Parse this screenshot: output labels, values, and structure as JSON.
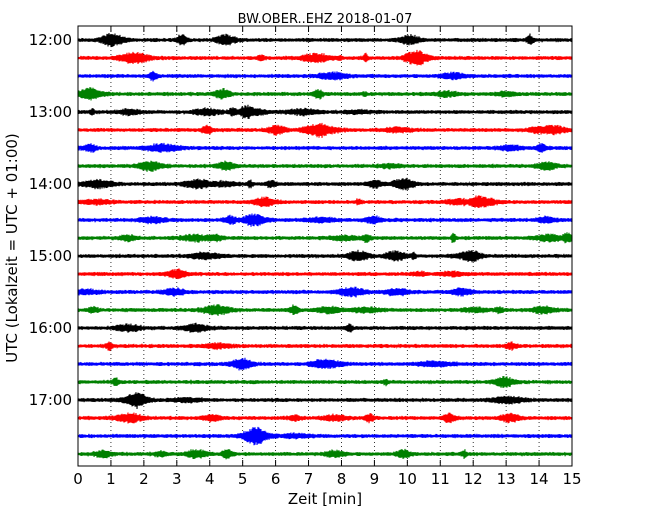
{
  "chart_data": {
    "type": "line",
    "title": "BW.OBER..EHZ 2018-01-07",
    "xlabel": "Zeit  [min]",
    "ylabel": "UTC (Lokalzeit = UTC + 01:00)",
    "xlim": [
      0,
      15
    ],
    "x_ticks": [
      0,
      1,
      2,
      3,
      4,
      5,
      6,
      7,
      8,
      9,
      10,
      11,
      12,
      13,
      14,
      15
    ],
    "x_tick_labels": [
      "0",
      "1",
      "2",
      "3",
      "4",
      "5",
      "6",
      "7",
      "8",
      "9",
      "10",
      "11",
      "12",
      "13",
      "14",
      "15"
    ],
    "vertical_grid": "dotted",
    "y_tick_labels": [
      "12:00",
      "13:00",
      "14:00",
      "15:00",
      "16:00",
      "17:00"
    ],
    "trace_colors": [
      "#000000",
      "#ff0000",
      "#0000ff",
      "#008000"
    ],
    "traces": [
      {
        "time": "12:00",
        "color": "#000000"
      },
      {
        "time": "12:15",
        "color": "#ff0000"
      },
      {
        "time": "12:30",
        "color": "#0000ff"
      },
      {
        "time": "12:45",
        "color": "#008000"
      },
      {
        "time": "13:00",
        "color": "#000000"
      },
      {
        "time": "13:15",
        "color": "#ff0000"
      },
      {
        "time": "13:30",
        "color": "#0000ff"
      },
      {
        "time": "13:45",
        "color": "#008000"
      },
      {
        "time": "14:00",
        "color": "#000000"
      },
      {
        "time": "14:15",
        "color": "#ff0000"
      },
      {
        "time": "14:30",
        "color": "#0000ff"
      },
      {
        "time": "14:45",
        "color": "#008000"
      },
      {
        "time": "15:00",
        "color": "#000000"
      },
      {
        "time": "15:15",
        "color": "#ff0000"
      },
      {
        "time": "15:30",
        "color": "#0000ff"
      },
      {
        "time": "15:45",
        "color": "#008000"
      },
      {
        "time": "16:00",
        "color": "#000000"
      },
      {
        "time": "16:15",
        "color": "#ff0000"
      },
      {
        "time": "16:30",
        "color": "#0000ff"
      },
      {
        "time": "16:45",
        "color": "#008000"
      },
      {
        "time": "17:00",
        "color": "#000000"
      },
      {
        "time": "17:15",
        "color": "#ff0000"
      },
      {
        "time": "17:30",
        "color": "#0000ff"
      },
      {
        "time": "17:45",
        "color": "#008000"
      }
    ]
  }
}
